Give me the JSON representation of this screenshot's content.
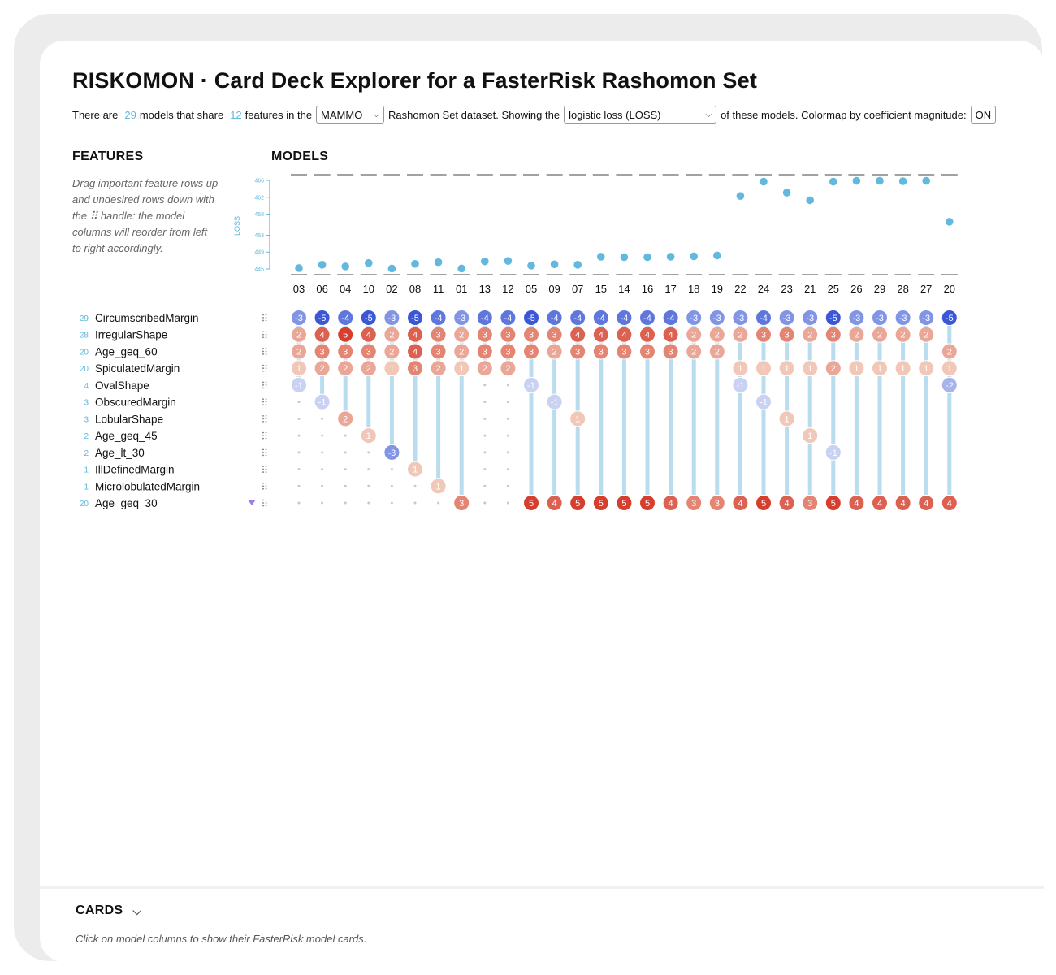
{
  "header": {
    "title": "RISKOMON · Card Deck Explorer for a FasterRisk Rashomon Set",
    "sub_1": "There are",
    "model_count": "29",
    "sub_2": "models that share",
    "feature_count": "12",
    "sub_3": "features in the",
    "dataset_select": "MAMMO",
    "sub_4": "Rashomon Set dataset. Showing the",
    "metric_select": "logistic loss (LOSS)",
    "sub_5": "of these models. Colormap by coefficient magnitude:",
    "colormap_toggle": "ON"
  },
  "features_panel": {
    "heading": "FEATURES",
    "help_text": "Drag important feature rows up and undesired rows down with the ⠿ handle: the model columns will reorder from left to right accordingly."
  },
  "models_panel": {
    "heading": "MODELS"
  },
  "chart_data": {
    "type": "scatter",
    "ylabel": "LOSS",
    "y_ticks": [
      "445",
      "449",
      "453",
      "458",
      "462",
      "466"
    ],
    "ylim": [
      445,
      466
    ],
    "models": [
      "03",
      "06",
      "04",
      "10",
      "02",
      "08",
      "11",
      "01",
      "13",
      "12",
      "05",
      "09",
      "07",
      "15",
      "14",
      "16",
      "17",
      "18",
      "19",
      "22",
      "24",
      "23",
      "21",
      "25",
      "26",
      "29",
      "28",
      "27",
      "20"
    ],
    "loss": [
      445.2,
      446.0,
      445.6,
      446.4,
      445.1,
      446.2,
      446.6,
      445.1,
      446.8,
      446.9,
      445.8,
      446.1,
      446.0,
      447.9,
      447.8,
      447.8,
      447.9,
      448.0,
      448.2,
      462.3,
      465.7,
      463.1,
      461.3,
      465.7,
      465.9,
      465.9,
      465.8,
      465.9,
      456.2
    ]
  },
  "features": [
    {
      "name": "CircumscribedMargin",
      "count": "29"
    },
    {
      "name": "IrregularShape",
      "count": "28"
    },
    {
      "name": "Age_geq_60",
      "count": "20"
    },
    {
      "name": "SpiculatedMargin",
      "count": "20"
    },
    {
      "name": "OvalShape",
      "count": "4"
    },
    {
      "name": "ObscuredMargin",
      "count": "3"
    },
    {
      "name": "LobularShape",
      "count": "3"
    },
    {
      "name": "Age_geq_45",
      "count": "2"
    },
    {
      "name": "Age_lt_30",
      "count": "2"
    },
    {
      "name": "IllDefinedMargin",
      "count": "1"
    },
    {
      "name": "MicrolobulatedMargin",
      "count": "1"
    },
    {
      "name": "Age_geq_30",
      "count": "20"
    }
  ],
  "coefficients": [
    [
      -3,
      2,
      2,
      1,
      -1,
      null,
      null,
      null,
      null,
      null,
      null,
      null
    ],
    [
      -5,
      4,
      3,
      2,
      null,
      -1,
      null,
      null,
      null,
      null,
      null,
      null
    ],
    [
      -4,
      5,
      3,
      2,
      null,
      null,
      2,
      null,
      null,
      null,
      null,
      null
    ],
    [
      -5,
      4,
      3,
      2,
      null,
      null,
      null,
      1,
      null,
      null,
      null,
      null
    ],
    [
      -3,
      2,
      2,
      1,
      null,
      null,
      null,
      null,
      -3,
      null,
      null,
      null
    ],
    [
      -5,
      4,
      4,
      3,
      null,
      null,
      null,
      null,
      null,
      1,
      null,
      null
    ],
    [
      -4,
      3,
      3,
      2,
      null,
      null,
      null,
      null,
      null,
      null,
      1,
      null
    ],
    [
      -3,
      2,
      2,
      1,
      null,
      null,
      null,
      null,
      null,
      null,
      null,
      3
    ],
    [
      -4,
      3,
      3,
      2,
      null,
      null,
      null,
      null,
      null,
      null,
      null,
      null
    ],
    [
      -4,
      3,
      3,
      2,
      null,
      null,
      null,
      null,
      null,
      null,
      null,
      null
    ],
    [
      -5,
      3,
      3,
      null,
      -1,
      null,
      null,
      null,
      null,
      null,
      null,
      5
    ],
    [
      -4,
      3,
      2,
      null,
      null,
      -1,
      null,
      null,
      null,
      null,
      null,
      4
    ],
    [
      -4,
      4,
      3,
      null,
      null,
      null,
      1,
      null,
      null,
      null,
      null,
      5
    ],
    [
      -4,
      4,
      3,
      null,
      null,
      null,
      null,
      null,
      null,
      null,
      null,
      5
    ],
    [
      -4,
      4,
      3,
      null,
      null,
      null,
      null,
      null,
      null,
      null,
      null,
      5
    ],
    [
      -4,
      4,
      3,
      null,
      null,
      null,
      null,
      null,
      null,
      null,
      null,
      5
    ],
    [
      -4,
      4,
      3,
      null,
      null,
      null,
      null,
      null,
      null,
      null,
      null,
      4
    ],
    [
      -3,
      2,
      2,
      null,
      null,
      null,
      null,
      null,
      null,
      null,
      null,
      3
    ],
    [
      -3,
      2,
      2,
      null,
      null,
      null,
      null,
      null,
      null,
      null,
      null,
      3
    ],
    [
      -3,
      2,
      null,
      1,
      -1,
      null,
      null,
      null,
      null,
      null,
      null,
      4
    ],
    [
      -4,
      3,
      null,
      1,
      null,
      -1,
      null,
      null,
      null,
      null,
      null,
      5
    ],
    [
      -3,
      3,
      null,
      1,
      null,
      null,
      1,
      null,
      null,
      null,
      null,
      4
    ],
    [
      -3,
      2,
      null,
      1,
      null,
      null,
      null,
      1,
      null,
      null,
      null,
      3
    ],
    [
      -5,
      3,
      null,
      2,
      null,
      null,
      null,
      null,
      -1,
      null,
      null,
      5
    ],
    [
      -3,
      2,
      null,
      1,
      null,
      null,
      null,
      null,
      null,
      null,
      null,
      4
    ],
    [
      -3,
      2,
      null,
      1,
      null,
      null,
      null,
      null,
      null,
      null,
      null,
      4
    ],
    [
      -3,
      2,
      null,
      1,
      null,
      null,
      null,
      null,
      null,
      null,
      null,
      4
    ],
    [
      -3,
      2,
      null,
      1,
      null,
      null,
      null,
      null,
      null,
      null,
      null,
      4
    ],
    [
      -5,
      null,
      2,
      1,
      -2,
      null,
      null,
      null,
      null,
      null,
      null,
      4
    ]
  ],
  "colors": {
    "accent": "#62b8dd",
    "neg_dark": "#3b57d6",
    "neg_light": "#c9d2f3",
    "pos_dark": "#d63f2e",
    "pos_light": "#f1c8b8",
    "stem": "#b9dcee",
    "drag_marker": "#9b7ee0"
  },
  "icons": {
    "drag_handle": "drag-handle-icon",
    "sort_marker": "sort-triangle-icon"
  },
  "cards_panel": {
    "heading": "CARDS",
    "hint": "Click on model columns to show their FasterRisk model cards."
  }
}
